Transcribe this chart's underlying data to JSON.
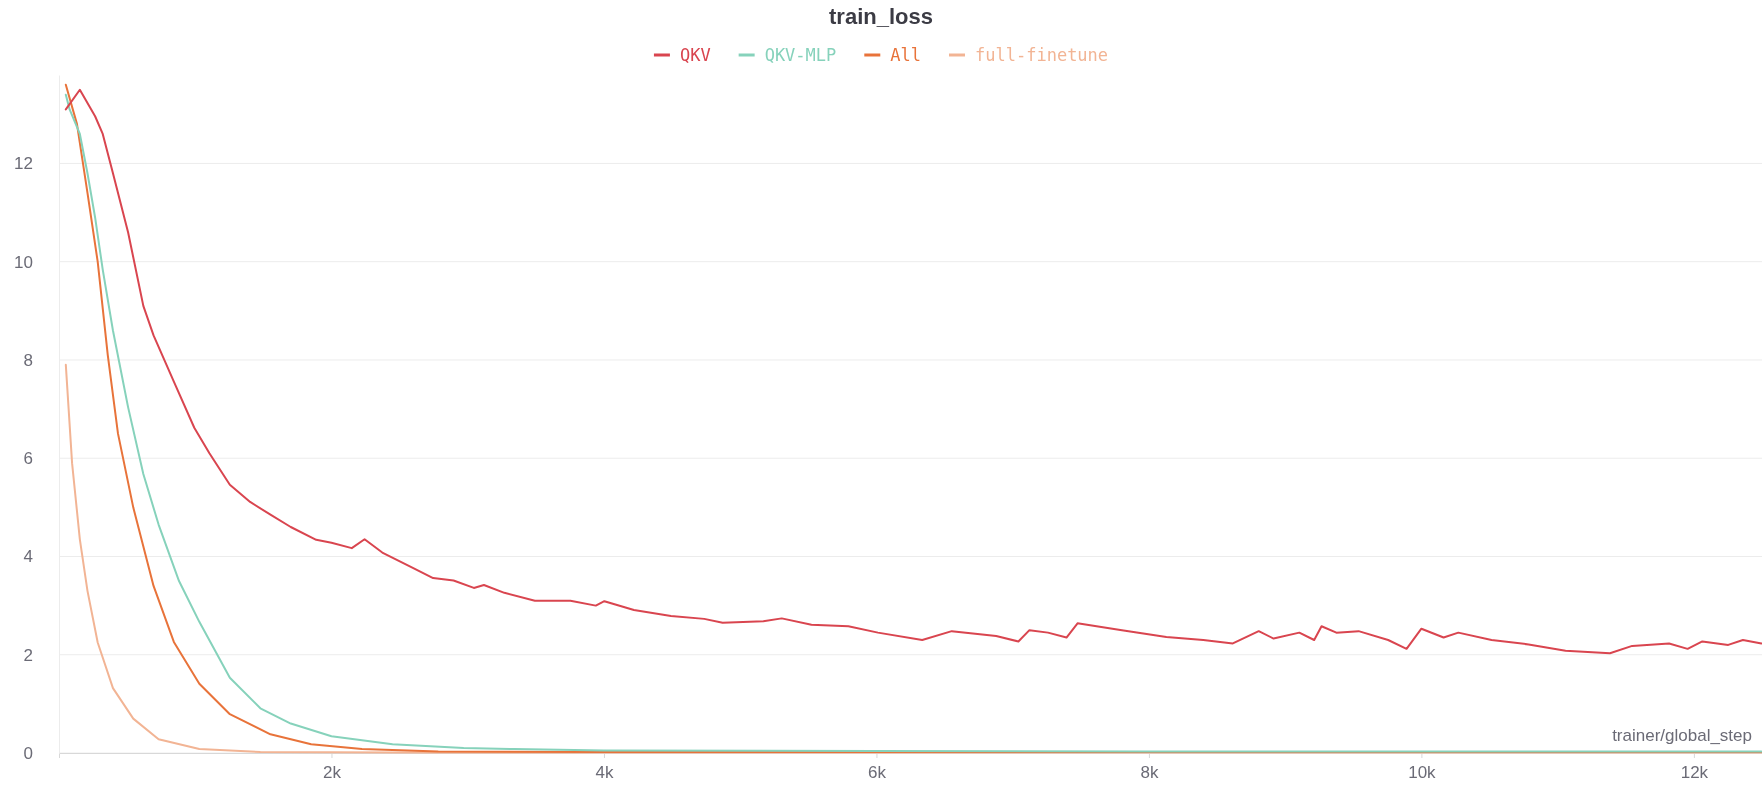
{
  "chart_data": {
    "type": "line",
    "title": "train_loss",
    "xlabel": "trainer/global_step",
    "xlim": [
      0,
      12500
    ],
    "ylim": [
      0,
      13.8
    ],
    "xticks": [
      {
        "value": 2000,
        "label": "2k"
      },
      {
        "value": 4000,
        "label": "4k"
      },
      {
        "value": 6000,
        "label": "6k"
      },
      {
        "value": 8000,
        "label": "8k"
      },
      {
        "value": 10000,
        "label": "10k"
      },
      {
        "value": 12000,
        "label": "12k"
      }
    ],
    "yticks": [
      0,
      2,
      4,
      6,
      8,
      10,
      12
    ],
    "grid": "y",
    "legend": "top",
    "line_style": "solid",
    "marker": "none",
    "series": [
      {
        "name": "QKV",
        "color": "#d9454f",
        "x": [
          50,
          153,
          265,
          321,
          396,
          507,
          619,
          694,
          843,
          993,
          1104,
          1254,
          1403,
          1552,
          1701,
          1888,
          2000,
          2149,
          2243,
          2373,
          2597,
          2746,
          2896,
          3045,
          3119,
          3269,
          3493,
          3754,
          3940,
          4003,
          4220,
          4492,
          4736,
          4871,
          5170,
          5305,
          5523,
          5794,
          6011,
          6336,
          6553,
          6879,
          7042,
          7123,
          7259,
          7395,
          7476,
          7802,
          8128,
          8399,
          8616,
          8806,
          8915,
          9104,
          9213,
          9267,
          9376,
          9539,
          9756,
          9891,
          10000,
          10163,
          10271,
          10515,
          10787,
          11058,
          11384,
          11547,
          11818,
          11954,
          12062,
          12252,
          12360,
          12496
        ],
        "values": [
          13.1,
          13.5,
          12.96,
          12.6,
          11.8,
          10.6,
          9.1,
          8.5,
          7.56,
          6.62,
          6.1,
          5.46,
          5.11,
          4.85,
          4.6,
          4.34,
          4.28,
          4.17,
          4.35,
          4.08,
          3.77,
          3.56,
          3.51,
          3.36,
          3.42,
          3.26,
          3.1,
          3.1,
          3.0,
          3.09,
          2.91,
          2.79,
          2.73,
          2.65,
          2.68,
          2.74,
          2.61,
          2.58,
          2.45,
          2.3,
          2.48,
          2.38,
          2.27,
          2.5,
          2.45,
          2.35,
          2.64,
          2.5,
          2.36,
          2.3,
          2.23,
          2.48,
          2.33,
          2.45,
          2.3,
          2.58,
          2.45,
          2.48,
          2.3,
          2.12,
          2.53,
          2.35,
          2.45,
          2.3,
          2.21,
          2.08,
          2.03,
          2.18,
          2.23,
          2.12,
          2.27,
          2.2,
          2.3,
          2.23
        ]
      },
      {
        "name": "QKV-MLP",
        "color": "#86d2bb",
        "x": [
          50,
          78,
          153,
          209,
          265,
          321,
          396,
          507,
          619,
          731,
          881,
          1030,
          1254,
          1478,
          1701,
          2000,
          2448,
          2970,
          3343,
          4000,
          6000,
          8000,
          10000,
          12496
        ],
        "values": [
          13.4,
          13.1,
          12.6,
          11.8,
          10.9,
          9.84,
          8.6,
          7.04,
          5.68,
          4.65,
          3.5,
          2.67,
          1.53,
          0.91,
          0.6,
          0.34,
          0.18,
          0.1,
          0.08,
          0.05,
          0.04,
          0.03,
          0.03,
          0.03
        ]
      },
      {
        "name": "All",
        "color": "#e8733a",
        "x": [
          50,
          132,
          209,
          284,
          358,
          433,
          545,
          694,
          843,
          1030,
          1254,
          1552,
          1851,
          2224,
          2784,
          4000,
          6000,
          8000,
          10000,
          12496
        ],
        "values": [
          13.6,
          12.8,
          11.4,
          10.0,
          8.1,
          6.5,
          5.0,
          3.4,
          2.26,
          1.41,
          0.79,
          0.38,
          0.18,
          0.08,
          0.03,
          0.02,
          0.02,
          0.02,
          0.02,
          0.02
        ]
      },
      {
        "name": "full-finetune",
        "color": "#f2b494",
        "x": [
          50,
          96,
          153,
          209,
          284,
          396,
          545,
          731,
          1030,
          1478,
          2500,
          4000,
          6000,
          8000,
          10000,
          12496
        ],
        "values": [
          7.9,
          5.9,
          4.35,
          3.3,
          2.25,
          1.32,
          0.7,
          0.28,
          0.08,
          0.02,
          0.01,
          0.01,
          0.01,
          0.01,
          0.01,
          0.01
        ]
      }
    ]
  }
}
